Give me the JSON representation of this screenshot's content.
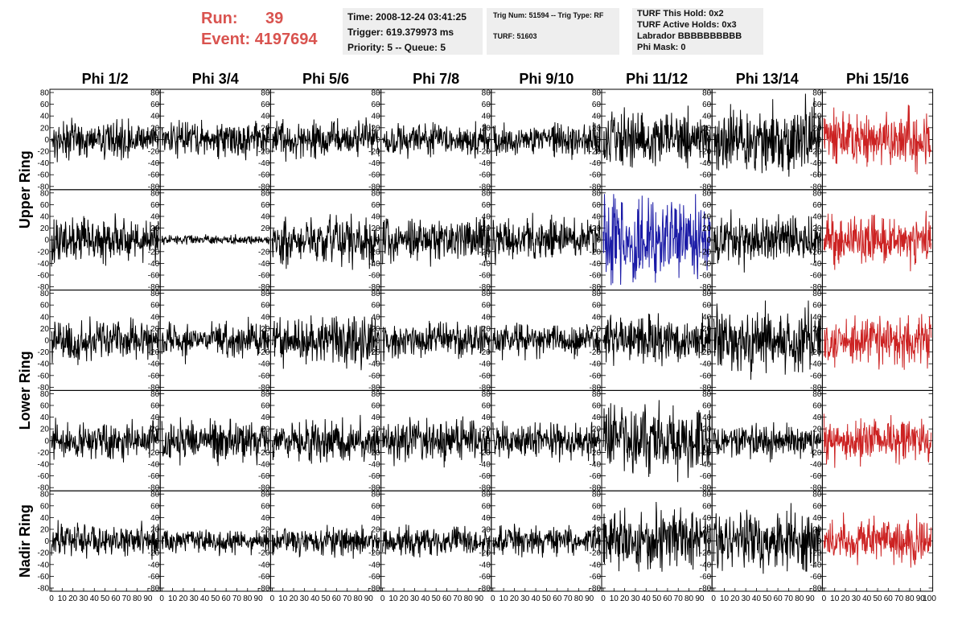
{
  "header": {
    "run_label": "Run:",
    "run_value": "39",
    "event_label": "Event:",
    "event_value": "4197694",
    "time": "Time: 2008-12-24 03:41:25",
    "trigger": "Trigger: 619.379973 ms",
    "priority": "Priority: 5 -- Queue: 5",
    "trig_num": "Trig Num: 51594 -- Trig Type: RF",
    "turf": "TURF: 51603",
    "turf_this_hold": "TURF This Hold: 0x2",
    "turf_active_holds": "TURF Active Holds: 0x3",
    "labrador": "Labrador BBBBBBBBBB",
    "phi_mask": "Phi Mask: 0"
  },
  "colors": {
    "red_header": "#d9534f",
    "trace_default": "#000000",
    "trace_red": "#cc2222",
    "trace_blue": "#1a1aa6",
    "info_bg": "#eeeeee"
  },
  "chart_data": {
    "type": "line",
    "columns": [
      "Phi 1/2",
      "Phi 3/4",
      "Phi 5/6",
      "Phi 7/8",
      "Phi 9/10",
      "Phi 11/12",
      "Phi 13/14",
      "Phi 15/16"
    ],
    "ring_labels": [
      {
        "label": "Upper Ring",
        "rows": [
          0,
          1
        ]
      },
      {
        "label": "Lower Ring",
        "rows": [
          2,
          3
        ]
      },
      {
        "label": "Nadir Ring",
        "rows": [
          4
        ]
      }
    ],
    "ylim": [
      -80,
      80
    ],
    "yticks": [
      -80,
      -60,
      -40,
      -20,
      0,
      20,
      40,
      60,
      80
    ],
    "xlim": [
      0,
      100
    ],
    "xticks": [
      0,
      10,
      20,
      30,
      40,
      50,
      60,
      70,
      80,
      90
    ],
    "last_xtick_label": "100",
    "samples": 260,
    "amplitudes": [
      [
        15,
        15,
        16,
        14,
        15,
        23,
        30,
        24
      ],
      [
        18,
        4,
        20,
        18,
        18,
        38,
        20,
        22
      ],
      [
        17,
        15,
        22,
        15,
        14,
        20,
        28,
        20
      ],
      [
        16,
        18,
        18,
        18,
        15,
        28,
        14,
        20
      ],
      [
        14,
        10,
        12,
        12,
        12,
        26,
        26,
        20
      ]
    ],
    "trace_colors": [
      [
        "default",
        "default",
        "default",
        "default",
        "default",
        "default",
        "default",
        "red"
      ],
      [
        "default",
        "default",
        "default",
        "default",
        "default",
        "blue",
        "default",
        "red"
      ],
      [
        "default",
        "default",
        "default",
        "default",
        "default",
        "default",
        "default",
        "red"
      ],
      [
        "default",
        "default",
        "default",
        "default",
        "default",
        "default",
        "default",
        "red"
      ],
      [
        "default",
        "default",
        "default",
        "default",
        "default",
        "default",
        "default",
        "red"
      ]
    ]
  }
}
